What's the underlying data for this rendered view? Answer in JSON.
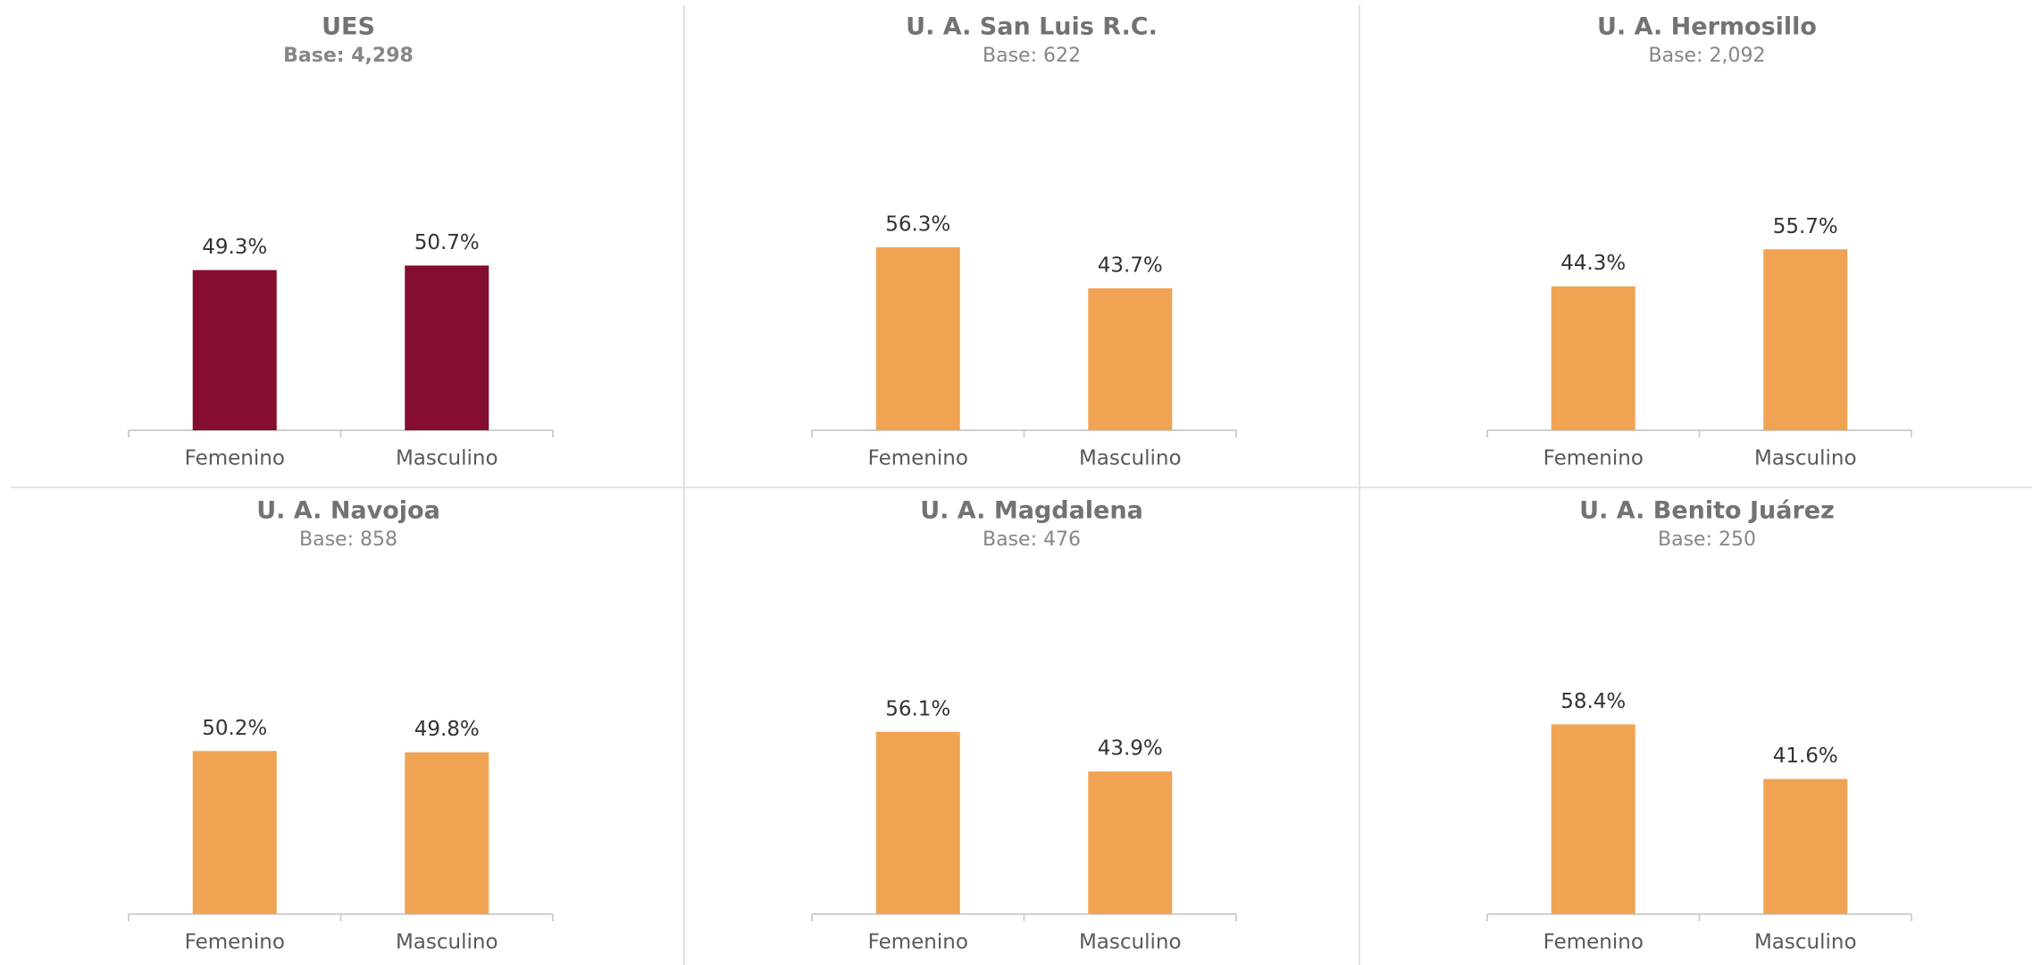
{
  "chart_data": [
    {
      "type": "bar",
      "title": "UES",
      "subtitle": "Base: 4,298",
      "subtitle_bold": true,
      "categories": [
        "Femenino",
        "Masculino"
      ],
      "values": [
        49.3,
        50.7
      ],
      "value_labels": [
        "49.3%",
        "50.7%"
      ],
      "color": "#850d2f",
      "ylim": [
        0,
        100
      ]
    },
    {
      "type": "bar",
      "title": "U. A. San Luis R.C.",
      "subtitle": "Base: 622",
      "categories": [
        "Femenino",
        "Masculino"
      ],
      "values": [
        56.3,
        43.7
      ],
      "value_labels": [
        "56.3%",
        "43.7%"
      ],
      "color": "#f0a453",
      "ylim": [
        0,
        100
      ]
    },
    {
      "type": "bar",
      "title": "U. A. Hermosillo",
      "subtitle": "Base: 2,092",
      "categories": [
        "Femenino",
        "Masculino"
      ],
      "values": [
        44.3,
        55.7
      ],
      "value_labels": [
        "44.3%",
        "55.7%"
      ],
      "color": "#f0a453",
      "ylim": [
        0,
        100
      ]
    },
    {
      "type": "bar",
      "title": "U. A. Navojoa",
      "subtitle": "Base: 858",
      "categories": [
        "Femenino",
        "Masculino"
      ],
      "values": [
        50.2,
        49.8
      ],
      "value_labels": [
        "50.2%",
        "49.8%"
      ],
      "color": "#f0a453",
      "ylim": [
        0,
        100
      ]
    },
    {
      "type": "bar",
      "title": "U. A. Magdalena",
      "subtitle": "Base: 476",
      "categories": [
        "Femenino",
        "Masculino"
      ],
      "values": [
        56.1,
        43.9
      ],
      "value_labels": [
        "56.1%",
        "43.9%"
      ],
      "color": "#f0a453",
      "ylim": [
        0,
        100
      ]
    },
    {
      "type": "bar",
      "title": "U. A. Benito Juárez",
      "subtitle": "Base: 250",
      "categories": [
        "Femenino",
        "Masculino"
      ],
      "values": [
        58.4,
        41.6
      ],
      "value_labels": [
        "58.4%",
        "41.6%"
      ],
      "color": "#f0a453",
      "ylim": [
        0,
        100
      ]
    }
  ]
}
